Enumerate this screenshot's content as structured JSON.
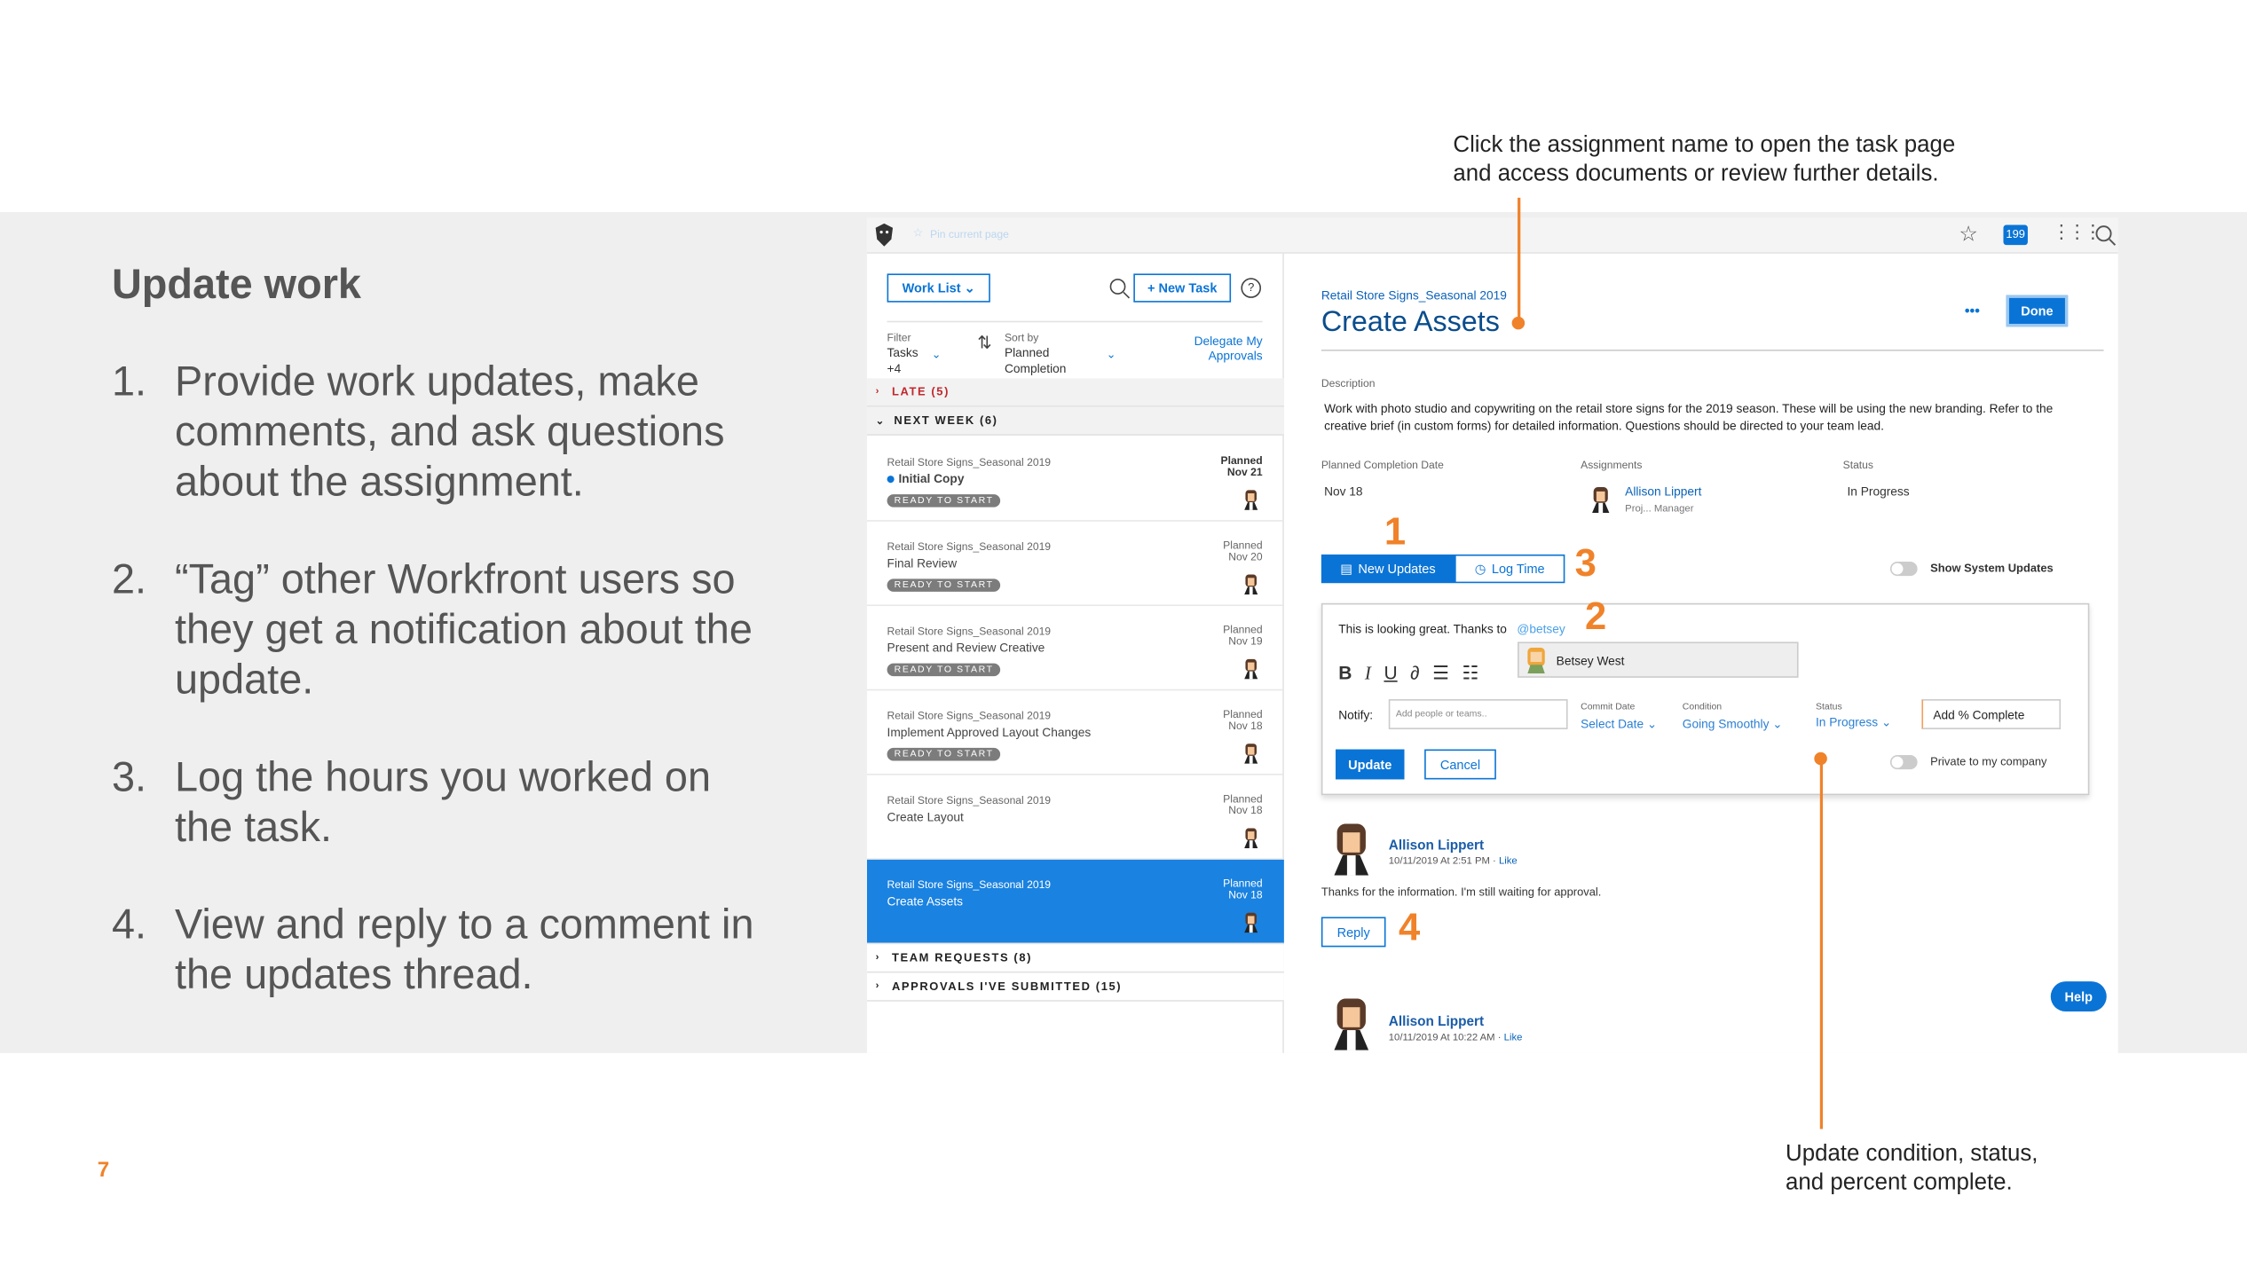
{
  "slide": {
    "title": "Update work",
    "page_number": "7",
    "steps": [
      {
        "n": "1.",
        "text": "Provide work updates, make comments, and ask questions about the assignment."
      },
      {
        "n": "2.",
        "text": "“Tag” other Workfront users so they get a notification about the update."
      },
      {
        "n": "3.",
        "text": "Log the hours you worked on the task."
      },
      {
        "n": "4.",
        "text": "View and reply to a comment in the updates thread."
      }
    ],
    "callout_top": [
      "Click the assignment name to open the task page",
      "and access documents or review further details."
    ],
    "callout_bottom": [
      "Update condition, status,",
      "and percent complete."
    ],
    "markers": [
      "1",
      "2",
      "3",
      "4"
    ],
    "accent": "#f0822a"
  },
  "app": {
    "topbar": {
      "pin": "Pin current page",
      "notifications": "199",
      "icons": [
        "logo-icon",
        "pin-icon",
        "star-icon",
        "grid-icon",
        "search-icon"
      ]
    },
    "left": {
      "worklist": "Work List",
      "new_task": "+ New Task",
      "help": "?",
      "filter_label": "Filter",
      "filter_value": "Tasks",
      "filter_more": "+4",
      "sort_label": "Sort by",
      "sort_value": "Planned Completion",
      "delegate": "Delegate My Approvals",
      "late": "LATE  (5)",
      "next_week": "NEXT WEEK  (6)",
      "team_requests": "TEAM REQUESTS  (8)",
      "approvals": "APPROVALS I'VE SUBMITTED  (15)",
      "tasks": [
        {
          "project": "Retail Store Signs_Seasonal 2019",
          "name": "Initial Copy",
          "badge": "READY TO START",
          "planned": "Planned",
          "date": "Nov 21",
          "unread": true
        },
        {
          "project": "Retail Store Signs_Seasonal 2019",
          "name": "Final Review",
          "badge": "READY TO START",
          "planned": "Planned",
          "date": "Nov 20"
        },
        {
          "project": "Retail Store Signs_Seasonal 2019",
          "name": "Present and Review  Creative",
          "badge": "READY TO START",
          "planned": "Planned",
          "date": "Nov 19"
        },
        {
          "project": "Retail Store Signs_Seasonal 2019",
          "name": "Implement Approved Layout Changes",
          "badge": "READY TO START",
          "planned": "Planned",
          "date": "Nov 18"
        },
        {
          "project": "Retail Store Signs_Seasonal 2019",
          "name": "Create Layout",
          "badge": "",
          "planned": "Planned",
          "date": "Nov 18"
        },
        {
          "project": "Retail Store Signs_Seasonal 2019",
          "name": "Create Assets",
          "badge": "",
          "planned": "Planned",
          "date": "Nov 18",
          "selected": true
        }
      ]
    },
    "detail": {
      "project": "Retail Store Signs_Seasonal 2019",
      "title": "Create Assets",
      "more": "•••",
      "done": "Done",
      "description_label": "Description",
      "description": "Work with photo studio and copywriting on the retail store signs for the 2019 season. These will be using the new branding. Refer to the creative brief (in custom forms) for detailed information. Questions should be directed to your team lead.",
      "planned_label": "Planned Completion Date",
      "planned_value": "Nov 18",
      "assign_label": "Assignments",
      "assignee": "Allison Lippert",
      "assignee_role": "Proj...  Manager",
      "status_label": "Status",
      "status_value": "In Progress",
      "tab_updates": "New Updates",
      "tab_log": "Log Time",
      "show_system": "Show System Updates",
      "comment_text": "This is looking great. Thanks to",
      "mention": "@betsey",
      "suggestion": "Betsey West",
      "notify_label": "Notify:",
      "notify_placeholder": "Add people or teams..",
      "commit_label": "Commit Date",
      "commit_value": "Select Date",
      "condition_label": "Condition",
      "condition_value": "Going Smoothly",
      "status2_label": "Status",
      "status2_value": "In Progress",
      "percent": "Add % Complete",
      "update": "Update",
      "cancel": "Cancel",
      "private": "Private to my company",
      "comments": [
        {
          "author": "Allison Lippert",
          "time": "10/11/2019 At 2:51 PM",
          "like": "Like",
          "text": "Thanks for the information. I'm still waiting for approval.",
          "reply": "Reply"
        },
        {
          "author": "Allison Lippert",
          "time": "10/11/2019 At 10:22 AM",
          "like": "Like"
        }
      ],
      "help": "Help"
    }
  }
}
